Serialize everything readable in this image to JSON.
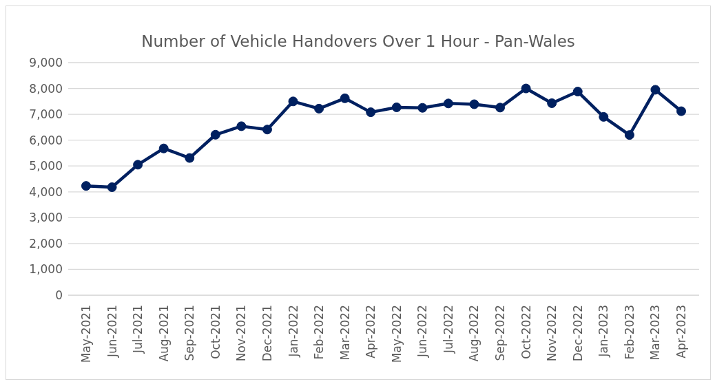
{
  "chart_data": {
    "type": "line",
    "title": "Number of Vehicle Handovers Over 1 Hour - Pan-Wales",
    "categories": [
      "May-2021",
      "Jun-2021",
      "Jul-2021",
      "Aug-2021",
      "Sep-2021",
      "Oct-2021",
      "Nov-2021",
      "Dec-2021",
      "Jan-2022",
      "Feb-2022",
      "Mar-2022",
      "Apr-2022",
      "May-2022",
      "Jun-2022",
      "Jul-2022",
      "Aug-2022",
      "Sep-2022",
      "Oct-2022",
      "Nov-2022",
      "Dec-2022",
      "Jan-2023",
      "Feb-2023",
      "Mar-2023",
      "Apr-2023"
    ],
    "series": [
      {
        "color": "#002060",
        "values": [
          4230,
          4180,
          5050,
          5680,
          5310,
          6210,
          6540,
          6410,
          7500,
          7220,
          7620,
          7080,
          7270,
          7250,
          7420,
          7390,
          7260,
          8000,
          7430,
          7880,
          6900,
          6200,
          7950,
          7120
        ]
      }
    ],
    "ylim": [
      0,
      9000
    ],
    "yticks": [
      0,
      {
        "value": 1000,
        "label": "1,000"
      },
      {
        "value": 2000,
        "label": "2,000"
      },
      {
        "value": 3000,
        "label": "3,000"
      },
      {
        "value": 4000,
        "label": "4,000"
      },
      {
        "value": 5000,
        "label": "5,000"
      },
      {
        "value": 6000,
        "label": "6,000"
      },
      {
        "value": 7000,
        "label": "7,000"
      },
      {
        "value": 8000,
        "label": "8,000"
      },
      {
        "value": 9000,
        "label": "9,000"
      }
    ],
    "grid": "y",
    "legend": false,
    "marker": "circle",
    "line_style": "solid"
  }
}
